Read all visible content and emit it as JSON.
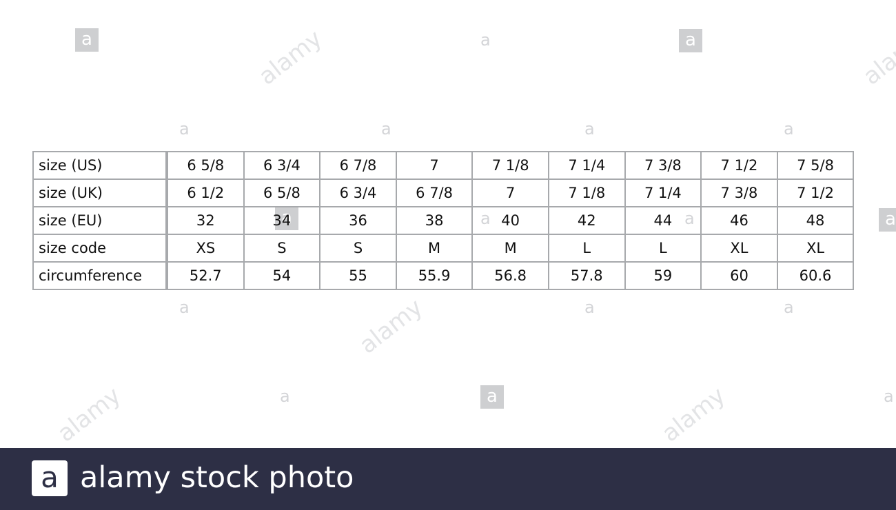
{
  "table": {
    "rows": [
      {
        "label": "size (US)",
        "values": [
          "6 5/8",
          "6 3/4",
          "6 7/8",
          "7",
          "7 1/8",
          "7 1/4",
          "7 3/8",
          "7 1/2",
          "7 5/8"
        ]
      },
      {
        "label": "size (UK)",
        "values": [
          "6 1/2",
          "6 5/8",
          "6 3/4",
          "6 7/8",
          "7",
          "7 1/8",
          "7 1/4",
          "7 3/8",
          "7 1/2"
        ]
      },
      {
        "label": "size (EU)",
        "values": [
          "32",
          "34",
          "36",
          "38",
          "40",
          "42",
          "44",
          "46",
          "48"
        ]
      },
      {
        "label": "size code",
        "values": [
          "XS",
          "S",
          "S",
          "M",
          "M",
          "L",
          "L",
          "XL",
          "XL"
        ]
      },
      {
        "label": "circumference",
        "values": [
          "52.7",
          "54",
          "55",
          "55.9",
          "56.8",
          "57.8",
          "59",
          "60",
          "60.6"
        ]
      }
    ]
  },
  "watermark": {
    "logo_letter": "a",
    "word": "alamy"
  },
  "brand_bar": {
    "logo_letter": "a",
    "text": "alamy stock photo",
    "background": "#2d2f45"
  }
}
